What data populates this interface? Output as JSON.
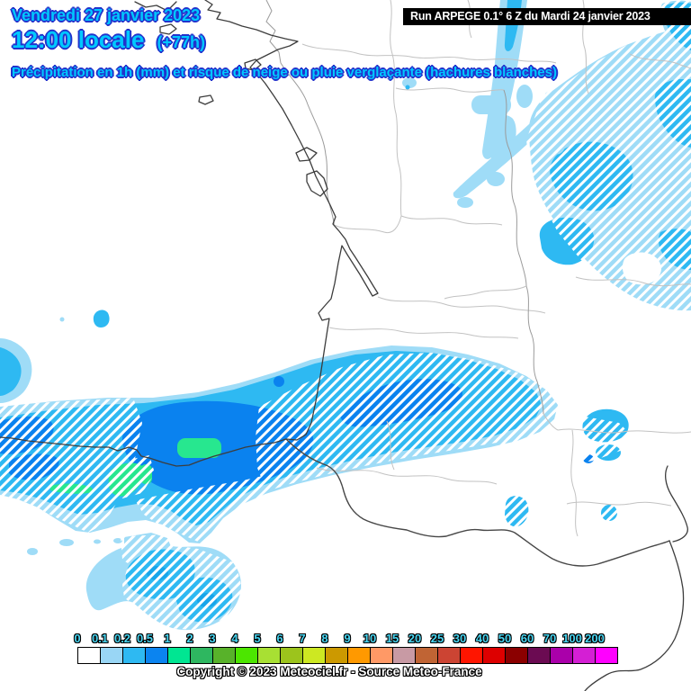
{
  "header": {
    "date_line": "Vendredi 27 janvier 2023",
    "time_line": "12:00 locale",
    "time_offset": "(+77h)",
    "run_info": "Run ARPEGE 0.1° 6 Z du Mardi 24 janvier 2023",
    "subtitle": "Précipitation en 1h (mm) et risque de neige ou pluie verglaçante (hachures blanches)"
  },
  "legend": {
    "unit": "mm",
    "values": [
      "0",
      "0.1",
      "0.2",
      "0.5",
      "1",
      "2",
      "3",
      "4",
      "5",
      "6",
      "7",
      "8",
      "9",
      "10",
      "15",
      "20",
      "25",
      "30",
      "40",
      "50",
      "60",
      "70",
      "100",
      "200"
    ],
    "colors": [
      "#ffffff",
      "#99d6f5",
      "#2eb9f2",
      "#0b84f0",
      "#00e692",
      "#2eb760",
      "#58b22a",
      "#4ce600",
      "#a8e033",
      "#9cc41c",
      "#cde822",
      "#cc9900",
      "#ff9900",
      "#ff9966",
      "#c89aa4",
      "#c06434",
      "#cc4433",
      "#ff1500",
      "#dd0000",
      "#8b0000",
      "#6b0b52",
      "#aa00aa",
      "#d41fd4",
      "#ff00ff"
    ]
  },
  "map_colors": {
    "precip_light": "#9fdcf7",
    "precip_moderate": "#2eb9f2",
    "precip_strong": "#0a82ef",
    "precip_intense": "#27e78f",
    "snow_hatch": "#ffffff"
  },
  "footer": {
    "copyright": "Copyright © 2023 Meteociel.fr - Source Meteo-France"
  }
}
